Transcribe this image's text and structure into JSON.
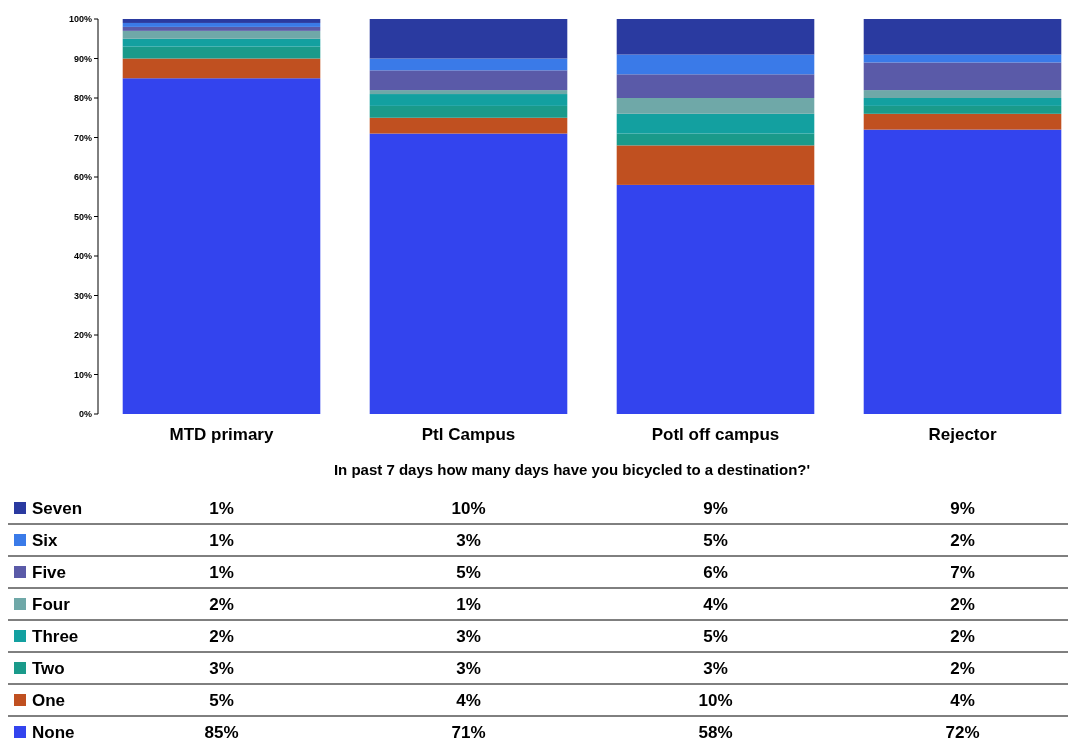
{
  "chart_data": {
    "type": "bar",
    "stacked": true,
    "categories": [
      "MTD primary",
      "Ptl Campus",
      "Potl off campus",
      "Rejector"
    ],
    "xlabel": "In past 7 days how many days have you bicycled to a destination?'",
    "ylim": [
      0,
      100
    ],
    "yticks": [
      {
        "value": 0,
        "label": "0%"
      },
      {
        "value": 10,
        "label": "10%"
      },
      {
        "value": 20,
        "label": "20%"
      },
      {
        "value": 30,
        "label": "30%"
      },
      {
        "value": 40,
        "label": "40%"
      },
      {
        "value": 50,
        "label": "50%"
      },
      {
        "value": 60,
        "label": "60%"
      },
      {
        "value": 70,
        "label": "70%"
      },
      {
        "value": 80,
        "label": "80%"
      },
      {
        "value": 90,
        "label": "90%"
      },
      {
        "value": 100,
        "label": "100%"
      }
    ],
    "grid": false,
    "legend": "bottom left",
    "series": [
      {
        "name": "None",
        "color": "#3344ee",
        "values": [
          85,
          71,
          58,
          72
        ],
        "value_labels": [
          "85%",
          "71%",
          "58%",
          "72%"
        ]
      },
      {
        "name": "One",
        "color": "#c05020",
        "values": [
          5,
          4,
          10,
          4
        ],
        "value_labels": [
          "5%",
          "4%",
          "10%",
          "4%"
        ]
      },
      {
        "name": "Two",
        "color": "#1a9a8a",
        "values": [
          3,
          3,
          3,
          2
        ],
        "value_labels": [
          "3%",
          "3%",
          "3%",
          "2%"
        ]
      },
      {
        "name": "Three",
        "color": "#13a0a0",
        "values": [
          2,
          3,
          5,
          2
        ],
        "value_labels": [
          "2%",
          "3%",
          "5%",
          "2%"
        ]
      },
      {
        "name": "Four",
        "color": "#6fa8a8",
        "values": [
          2,
          1,
          4,
          2
        ],
        "value_labels": [
          "2%",
          "1%",
          "4%",
          "2%"
        ]
      },
      {
        "name": "Five",
        "color": "#5a5aa8",
        "values": [
          1,
          5,
          6,
          7
        ],
        "value_labels": [
          "1%",
          "5%",
          "6%",
          "7%"
        ]
      },
      {
        "name": "Six",
        "color": "#3a7ae8",
        "values": [
          1,
          3,
          5,
          2
        ],
        "value_labels": [
          "1%",
          "3%",
          "5%",
          "2%"
        ]
      },
      {
        "name": "Seven",
        "color": "#2a3aa0",
        "values": [
          1,
          10,
          9,
          9
        ],
        "value_labels": [
          "1%",
          "10%",
          "9%",
          "9%"
        ]
      }
    ]
  }
}
